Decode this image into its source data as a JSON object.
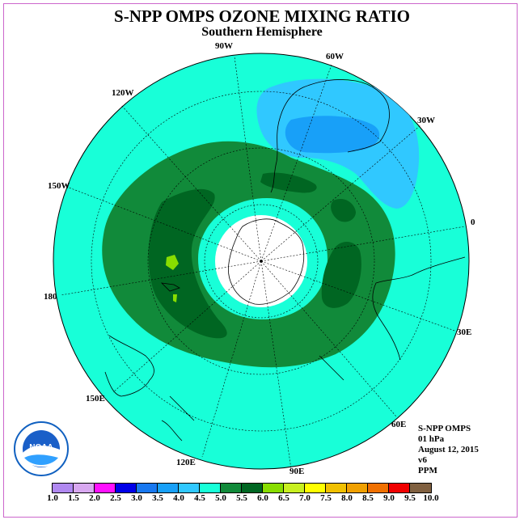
{
  "title": "S-NPP OMPS OZONE MIXING RATIO",
  "subtitle": "Southern Hemisphere",
  "longitude_labels": [
    "90W",
    "60W",
    "30W",
    "120W",
    "150W",
    "0",
    "180",
    "30E",
    "150E",
    "60E",
    "120E",
    "90E"
  ],
  "info": {
    "instrument": "S-NPP OMPS",
    "level": "01 hPa",
    "date": "August 12, 2015",
    "version": "v6",
    "units": "PPM"
  },
  "logo": {
    "text": "NOAA"
  },
  "colorbar": {
    "ticks": [
      "1.0",
      "1.5",
      "2.0",
      "2.5",
      "3.0",
      "3.5",
      "4.0",
      "4.5",
      "5.0",
      "5.5",
      "6.0",
      "6.5",
      "7.0",
      "7.5",
      "8.0",
      "8.5",
      "9.0",
      "9.5",
      "10.0"
    ],
    "colors": [
      "#b088f0",
      "#d8a8f0",
      "#ff10ff",
      "#0000e8",
      "#1878f0",
      "#18a0f8",
      "#30c8ff",
      "#18ffd8",
      "#118a3a",
      "#006622",
      "#88dd00",
      "#c8f020",
      "#ffff00",
      "#f0c000",
      "#f0a000",
      "#f07000",
      "#f00000",
      "#806040"
    ]
  }
}
